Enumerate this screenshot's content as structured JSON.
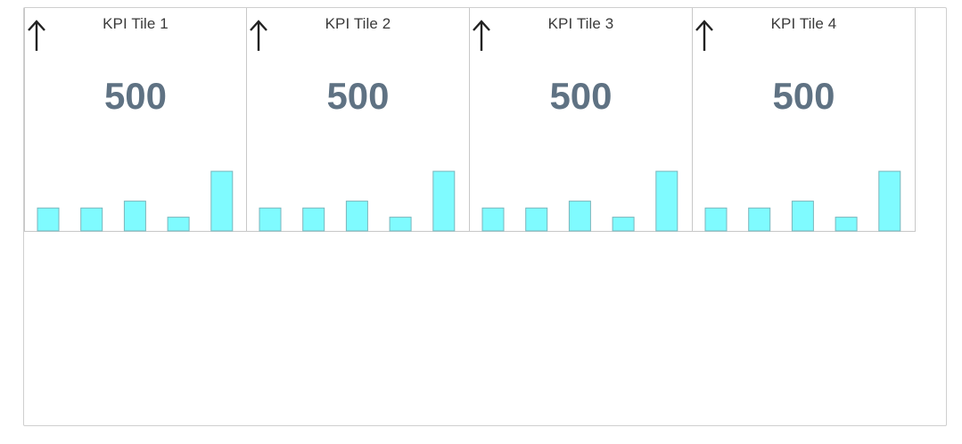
{
  "colors": {
    "bar_fill": "#7ffbff",
    "value_text": "#5f7283",
    "border": "#c8c8c8"
  },
  "tiles": [
    {
      "title": "KPI Tile 1",
      "value": "500",
      "trend_icon": "arrow-up-icon",
      "bars": [
        10,
        10,
        13,
        6,
        26
      ]
    },
    {
      "title": "KPI Tile 2",
      "value": "500",
      "trend_icon": "arrow-up-icon",
      "bars": [
        10,
        10,
        13,
        6,
        26
      ]
    },
    {
      "title": "KPI Tile 3",
      "value": "500",
      "trend_icon": "arrow-up-icon",
      "bars": [
        10,
        10,
        13,
        6,
        26
      ]
    },
    {
      "title": "KPI Tile 4",
      "value": "500",
      "trend_icon": "arrow-up-icon",
      "bars": [
        10,
        10,
        13,
        6,
        26
      ]
    }
  ]
}
